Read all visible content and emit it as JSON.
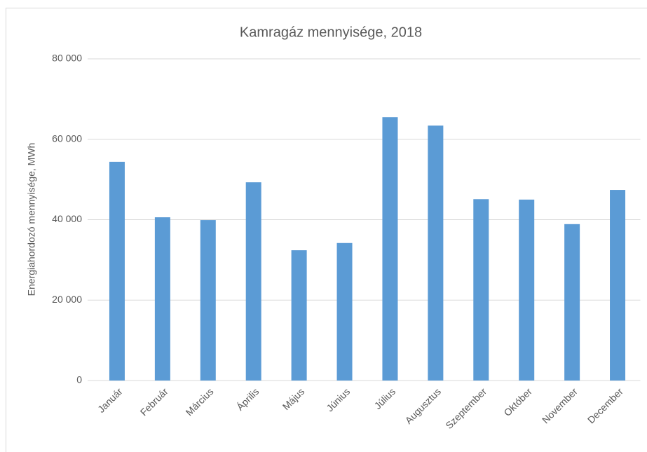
{
  "chart_data": {
    "type": "bar",
    "title": "Kamragáz mennyisége, 2018",
    "y_label": "Energiahordozó mennyisége, MWh",
    "categories": [
      "Január",
      "Február",
      "Március",
      "Április",
      "Május",
      "Június",
      "Július",
      "Augusztus",
      "Szeptember",
      "Október",
      "November",
      "December"
    ],
    "values": [
      54400,
      40600,
      39900,
      49300,
      32400,
      34200,
      65500,
      63400,
      45100,
      45000,
      38900,
      47400
    ],
    "color": "#5b9bd5",
    "ylim": [
      0,
      80000
    ],
    "yticks": [
      0,
      {
        "value": 20000,
        "label": "20 000"
      },
      {
        "value": 40000,
        "label": "40 000"
      },
      {
        "value": 60000,
        "label": "60 000"
      },
      {
        "value": 80000,
        "label": "80 000"
      }
    ],
    "grid": true
  }
}
